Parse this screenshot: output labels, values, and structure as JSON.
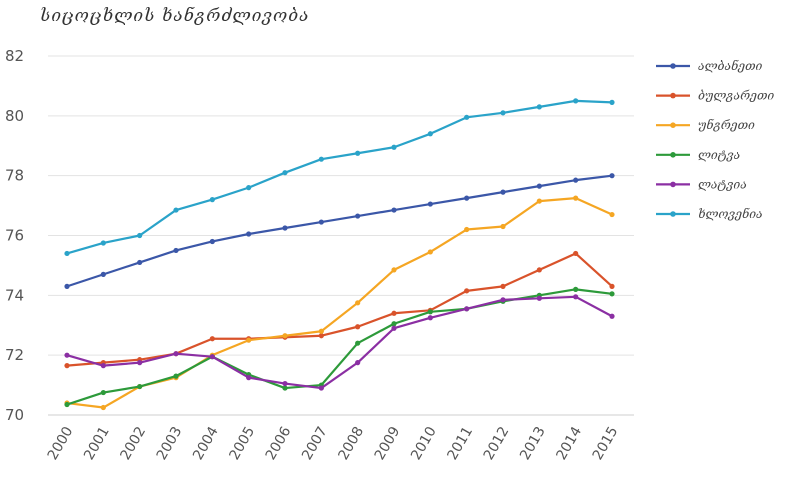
{
  "chart_data": {
    "type": "line",
    "title": "სიცოცხლის ხანგრძლივობა",
    "xlabel": "",
    "ylabel": "",
    "ylim": [
      70,
      82
    ],
    "yticks": [
      70,
      72,
      74,
      76,
      78,
      80,
      82
    ],
    "x": [
      "2000",
      "2001",
      "2002",
      "2003",
      "2004",
      "2005",
      "2006",
      "2007",
      "2008",
      "2009",
      "2010",
      "2011",
      "2012",
      "2013",
      "2014",
      "2015"
    ],
    "grid": "horizontal",
    "legend_position": "right",
    "series": [
      {
        "name": "ალბანეთი",
        "color": "#3b57a8",
        "values": [
          74.3,
          74.7,
          75.1,
          75.5,
          75.8,
          76.05,
          76.25,
          76.45,
          76.65,
          76.85,
          77.05,
          77.25,
          77.45,
          77.65,
          77.85,
          78.0
        ]
      },
      {
        "name": "ბულგარეთი",
        "color": "#d9532b",
        "values": [
          71.65,
          71.75,
          71.85,
          72.05,
          72.55,
          72.55,
          72.6,
          72.65,
          72.95,
          73.4,
          73.5,
          74.15,
          74.3,
          74.85,
          75.4,
          74.3
        ]
      },
      {
        "name": "უნგრეთი",
        "color": "#f5a623",
        "values": [
          70.4,
          70.25,
          70.95,
          71.25,
          72.0,
          72.5,
          72.65,
          72.8,
          73.75,
          74.85,
          75.45,
          76.2,
          76.3,
          77.15,
          77.25,
          76.7
        ]
      },
      {
        "name": "ლიტვა",
        "color": "#2d9a3a",
        "values": [
          70.35,
          70.75,
          70.95,
          71.3,
          71.95,
          71.35,
          70.9,
          71.0,
          72.4,
          73.05,
          73.45,
          73.55,
          73.8,
          74.0,
          74.2,
          74.05
        ]
      },
      {
        "name": "ლატვია",
        "color": "#8b2fa3",
        "values": [
          72.0,
          71.65,
          71.75,
          72.05,
          71.95,
          71.25,
          71.05,
          70.9,
          71.75,
          72.9,
          73.25,
          73.55,
          73.85,
          73.9,
          73.95,
          73.3
        ]
      },
      {
        "name": "ხლოვენია",
        "color": "#2aa3c9",
        "values": [
          75.4,
          75.75,
          76.0,
          76.85,
          77.2,
          77.6,
          78.1,
          78.55,
          78.75,
          78.95,
          79.4,
          79.95,
          80.1,
          80.3,
          80.5,
          80.45
        ]
      }
    ]
  }
}
